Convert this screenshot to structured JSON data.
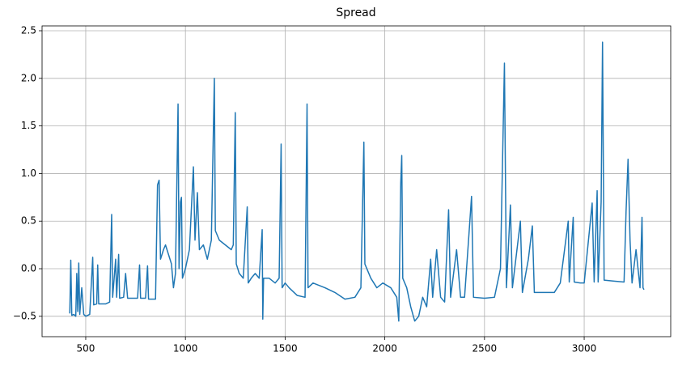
{
  "chart_data": {
    "type": "line",
    "title": "Spread",
    "x": [
      420,
      425,
      430,
      440,
      450,
      455,
      460,
      465,
      470,
      480,
      490,
      500,
      520,
      535,
      540,
      555,
      560,
      565,
      600,
      620,
      630,
      635,
      650,
      655,
      665,
      670,
      690,
      700,
      710,
      760,
      770,
      775,
      800,
      810,
      815,
      850,
      860,
      868,
      875,
      890,
      900,
      915,
      930,
      940,
      950,
      963,
      968,
      975,
      980,
      985,
      1000,
      1020,
      1040,
      1048,
      1060,
      1070,
      1090,
      1110,
      1130,
      1145,
      1150,
      1170,
      1200,
      1230,
      1240,
      1250,
      1255,
      1270,
      1290,
      1310,
      1315,
      1330,
      1350,
      1370,
      1385,
      1388,
      1392,
      1420,
      1450,
      1470,
      1480,
      1485,
      1500,
      1520,
      1560,
      1600,
      1610,
      1615,
      1640,
      1700,
      1750,
      1800,
      1850,
      1880,
      1895,
      1900,
      1930,
      1960,
      1990,
      2030,
      2060,
      2070,
      2080,
      2085,
      2090,
      2110,
      2130,
      2150,
      2170,
      2190,
      2210,
      2230,
      2240,
      2260,
      2280,
      2300,
      2320,
      2330,
      2360,
      2380,
      2400,
      2420,
      2435,
      2445,
      2500,
      2550,
      2580,
      2600,
      2610,
      2630,
      2640,
      2680,
      2690,
      2720,
      2740,
      2750,
      2800,
      2850,
      2880,
      2920,
      2925,
      2945,
      2950,
      2980,
      3000,
      3040,
      3050,
      3065,
      3070,
      3085,
      3092,
      3100,
      3150,
      3200,
      3210,
      3220,
      3230,
      3240,
      3260,
      3280,
      3290,
      3295,
      3300
    ],
    "series": [
      {
        "name": "Spread",
        "color": "#1f77b4",
        "values": [
          -0.47,
          0.09,
          -0.49,
          -0.48,
          -0.5,
          -0.05,
          -0.45,
          0.06,
          -0.48,
          -0.2,
          -0.48,
          -0.5,
          -0.48,
          0.12,
          -0.38,
          -0.37,
          0.04,
          -0.37,
          -0.37,
          -0.35,
          0.57,
          -0.3,
          0.1,
          -0.3,
          0.15,
          -0.31,
          -0.3,
          -0.05,
          -0.31,
          -0.31,
          0.04,
          -0.31,
          -0.31,
          0.03,
          -0.32,
          -0.32,
          0.88,
          0.93,
          0.1,
          0.2,
          0.25,
          0.15,
          0.05,
          -0.2,
          -0.05,
          1.73,
          0.0,
          0.7,
          0.75,
          -0.1,
          0.0,
          0.2,
          1.07,
          0.3,
          0.8,
          0.2,
          0.25,
          0.1,
          0.3,
          2.0,
          0.4,
          0.3,
          0.25,
          0.2,
          0.25,
          1.64,
          0.05,
          -0.05,
          -0.1,
          0.65,
          -0.15,
          -0.1,
          -0.05,
          -0.1,
          0.41,
          -0.53,
          -0.1,
          -0.1,
          -0.15,
          -0.1,
          1.31,
          -0.2,
          -0.15,
          -0.2,
          -0.28,
          -0.3,
          1.73,
          -0.2,
          -0.15,
          -0.2,
          -0.25,
          -0.32,
          -0.3,
          -0.2,
          1.33,
          0.05,
          -0.1,
          -0.2,
          -0.15,
          -0.2,
          -0.3,
          -0.55,
          0.9,
          1.19,
          -0.1,
          -0.2,
          -0.4,
          -0.55,
          -0.5,
          -0.3,
          -0.4,
          0.1,
          -0.3,
          0.2,
          -0.3,
          -0.35,
          0.62,
          -0.3,
          0.2,
          -0.3,
          -0.3,
          0.3,
          0.76,
          -0.3,
          -0.31,
          -0.3,
          0.0,
          2.16,
          -0.2,
          0.67,
          -0.2,
          0.5,
          -0.25,
          0.1,
          0.45,
          -0.25,
          -0.25,
          -0.25,
          -0.15,
          0.5,
          -0.14,
          0.54,
          -0.14,
          -0.15,
          -0.15,
          0.69,
          -0.14,
          0.82,
          -0.14,
          0.7,
          2.38,
          -0.12,
          -0.13,
          -0.14,
          0.6,
          1.15,
          0.3,
          -0.15,
          0.2,
          -0.2,
          0.54,
          -0.2,
          -0.22
        ]
      }
    ],
    "xlim": [
      281,
      3434
    ],
    "xticks": [
      500,
      1000,
      1500,
      2000,
      2500,
      3000
    ],
    "ylim": [
      -0.714,
      2.551
    ],
    "yticks": [
      {
        "value": -0.5,
        "label": "−0.5"
      },
      {
        "value": 0,
        "label": "0.0"
      },
      {
        "value": 0.5,
        "label": "0.5"
      },
      {
        "value": 1,
        "label": "1.0"
      },
      {
        "value": 1.5,
        "label": "1.5"
      },
      {
        "value": 2,
        "label": "2.0"
      },
      {
        "value": 2.5,
        "label": "2.5"
      }
    ],
    "grid": true
  }
}
